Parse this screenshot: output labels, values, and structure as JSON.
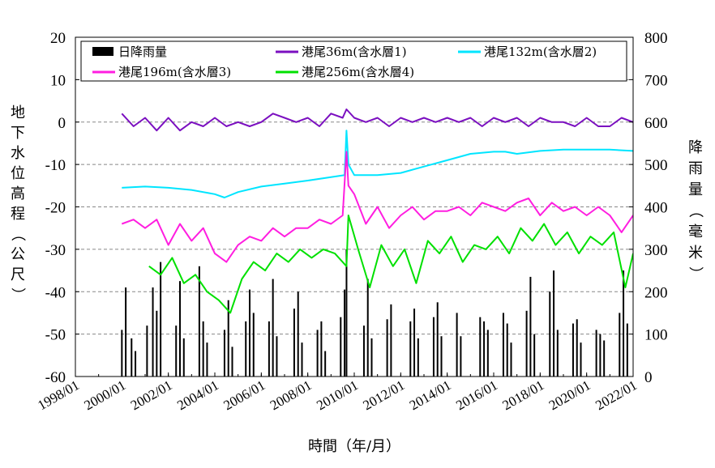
{
  "chart_data": {
    "type": "line",
    "xlabel": "時間（年/月）",
    "ylabel_left": "地下水位高程（公尺）",
    "ylabel_right": "降雨量（毫米）",
    "x_range": [
      "1998/01",
      "2022/01"
    ],
    "x_ticks": [
      "1998/01",
      "2000/01",
      "2002/01",
      "2004/01",
      "2006/01",
      "2008/01",
      "2010/01",
      "2012/01",
      "2014/01",
      "2016/01",
      "2018/01",
      "2020/01",
      "2022/01"
    ],
    "ylim_left": [
      -60,
      20
    ],
    "y_ticks_left": [
      "20",
      "10",
      "0",
      "-10",
      "-20",
      "-30",
      "-40",
      "-50",
      "-60"
    ],
    "ylim_right": [
      0,
      800
    ],
    "y_ticks_right": [
      "800",
      "700",
      "600",
      "500",
      "400",
      "300",
      "200",
      "100",
      "0"
    ],
    "grid": "dashed horizontal at left-axis ticks",
    "legend": {
      "placement": "top",
      "entries": [
        "日降雨量",
        "港尾36m(含水層1)",
        "港尾132m(含水層2)",
        "港尾196m(含水層3)",
        "港尾256m(含水層4)"
      ]
    },
    "series": [
      {
        "name": "港尾36m(含水層1)",
        "color": "#7B0FC0",
        "x": [
          "2000/01",
          "2000/07",
          "2001/01",
          "2001/07",
          "2002/01",
          "2002/07",
          "2003/01",
          "2003/07",
          "2004/01",
          "2004/07",
          "2005/01",
          "2005/07",
          "2006/01",
          "2006/07",
          "2007/01",
          "2007/07",
          "2008/01",
          "2008/07",
          "2009/01",
          "2009/07",
          "2009/09",
          "2010/01",
          "2010/07",
          "2011/01",
          "2011/07",
          "2012/01",
          "2012/07",
          "2013/01",
          "2013/07",
          "2014/01",
          "2014/07",
          "2015/01",
          "2015/07",
          "2016/01",
          "2016/07",
          "2017/01",
          "2017/07",
          "2018/01",
          "2018/07",
          "2019/01",
          "2019/07",
          "2020/01",
          "2020/07",
          "2021/01",
          "2021/07",
          "2022/01"
        ],
        "y": [
          2,
          -1,
          1,
          -2,
          1,
          -2,
          0,
          -1,
          1,
          -1,
          0,
          -1,
          0,
          2,
          1,
          0,
          1,
          -1,
          2,
          1,
          3,
          1,
          0,
          1,
          -1,
          1,
          0,
          1,
          0,
          1,
          0,
          1,
          -1,
          1,
          0,
          1,
          -1,
          1,
          0,
          0,
          -1,
          1,
          -1,
          -1,
          1,
          0
        ]
      },
      {
        "name": "港尾132m(含水層2)",
        "color": "#00E5FF",
        "x": [
          "2000/01",
          "2001/01",
          "2002/01",
          "2003/01",
          "2004/01",
          "2004/06",
          "2005/01",
          "2006/01",
          "2007/01",
          "2008/01",
          "2009/01",
          "2009/08",
          "2009/09",
          "2009/10",
          "2010/01",
          "2011/01",
          "2012/01",
          "2013/01",
          "2014/01",
          "2015/01",
          "2016/01",
          "2016/07",
          "2017/01",
          "2018/01",
          "2019/01",
          "2020/01",
          "2021/01",
          "2022/01"
        ],
        "y": [
          -15.5,
          -15.2,
          -15.5,
          -16,
          -17,
          -17.8,
          -16.5,
          -15.2,
          -14.5,
          -13.8,
          -13,
          -12.5,
          -2,
          -10,
          -12.5,
          -12.5,
          -12,
          -10.5,
          -9,
          -7.5,
          -7,
          -7,
          -7.5,
          -6.8,
          -6.5,
          -6.5,
          -6.5,
          -6.8
        ]
      },
      {
        "name": "港尾196m(含水層3)",
        "color": "#FF1EE0",
        "x": [
          "2000/01",
          "2000/07",
          "2001/01",
          "2001/07",
          "2002/01",
          "2002/07",
          "2003/01",
          "2003/07",
          "2004/01",
          "2004/07",
          "2005/01",
          "2005/07",
          "2006/01",
          "2006/07",
          "2007/01",
          "2007/07",
          "2008/01",
          "2008/07",
          "2009/01",
          "2009/07",
          "2009/09",
          "2009/10",
          "2010/01",
          "2010/07",
          "2011/01",
          "2011/07",
          "2012/01",
          "2012/07",
          "2013/01",
          "2013/07",
          "2014/01",
          "2014/07",
          "2015/01",
          "2015/07",
          "2016/01",
          "2016/07",
          "2017/01",
          "2017/07",
          "2018/01",
          "2018/07",
          "2019/01",
          "2019/07",
          "2020/01",
          "2020/07",
          "2021/01",
          "2021/07",
          "2022/01"
        ],
        "y": [
          -24,
          -23,
          -25,
          -23,
          -29,
          -24,
          -28,
          -25,
          -31,
          -33,
          -29,
          -27,
          -28,
          -25,
          -27,
          -25,
          -25,
          -23,
          -24,
          -22,
          -7,
          -15,
          -17,
          -24,
          -20,
          -25,
          -22,
          -20,
          -23,
          -21,
          -21,
          -20,
          -22,
          -19,
          -20,
          -21,
          -19,
          -18,
          -22,
          -19,
          -21,
          -20,
          -22,
          -20,
          -22,
          -26,
          -22
        ]
      },
      {
        "name": "港尾256m(含水層4)",
        "color": "#00E000",
        "x": [
          "2001/03",
          "2001/09",
          "2002/03",
          "2002/09",
          "2003/03",
          "2003/09",
          "2004/03",
          "2004/09",
          "2005/03",
          "2005/09",
          "2006/03",
          "2006/09",
          "2007/03",
          "2007/09",
          "2008/03",
          "2008/09",
          "2009/03",
          "2009/09",
          "2009/10",
          "2010/03",
          "2010/09",
          "2011/03",
          "2011/09",
          "2012/03",
          "2012/09",
          "2013/03",
          "2013/09",
          "2014/03",
          "2014/09",
          "2015/03",
          "2015/09",
          "2016/03",
          "2016/09",
          "2017/03",
          "2017/09",
          "2018/03",
          "2018/09",
          "2019/03",
          "2019/09",
          "2020/03",
          "2020/09",
          "2021/03",
          "2021/09",
          "2022/01"
        ],
        "y": [
          -34,
          -36,
          -32,
          -38,
          -36,
          -40,
          -42,
          -45,
          -37,
          -33,
          -35,
          -31,
          -33,
          -30,
          -32,
          -30,
          -31,
          -34,
          -22,
          -30,
          -39,
          -29,
          -34,
          -30,
          -38,
          -28,
          -31,
          -27,
          -33,
          -29,
          -30,
          -27,
          -31,
          -25,
          -28,
          -24,
          -29,
          -26,
          -31,
          -27,
          -29,
          -26,
          -39,
          -31
        ]
      },
      {
        "name": "日降雨量",
        "type": "bar",
        "color": "#000000",
        "axis": "right",
        "x": [
          "2000/01",
          "2000/03",
          "2000/06",
          "2000/08",
          "2001/02",
          "2001/05",
          "2001/07",
          "2001/09",
          "2002/05",
          "2002/07",
          "2002/09",
          "2003/05",
          "2003/07",
          "2003/09",
          "2004/06",
          "2004/08",
          "2004/10",
          "2005/05",
          "2005/07",
          "2005/09",
          "2006/05",
          "2006/07",
          "2006/09",
          "2007/06",
          "2007/08",
          "2007/10",
          "2008/06",
          "2008/08",
          "2008/10",
          "2009/06",
          "2009/08",
          "2009/09",
          "2010/06",
          "2010/08",
          "2010/10",
          "2011/06",
          "2011/08",
          "2012/06",
          "2012/08",
          "2012/10",
          "2013/06",
          "2013/08",
          "2013/10",
          "2014/06",
          "2014/08",
          "2015/06",
          "2015/08",
          "2015/10",
          "2016/06",
          "2016/08",
          "2016/10",
          "2017/06",
          "2017/08",
          "2017/10",
          "2018/06",
          "2018/08",
          "2018/10",
          "2019/06",
          "2019/08",
          "2019/10",
          "2020/06",
          "2020/08",
          "2020/10",
          "2021/06",
          "2021/08",
          "2021/10"
        ],
        "values": [
          110,
          210,
          90,
          60,
          120,
          210,
          155,
          270,
          120,
          225,
          90,
          260,
          130,
          80,
          110,
          180,
          70,
          130,
          205,
          150,
          130,
          230,
          95,
          160,
          200,
          80,
          110,
          130,
          60,
          140,
          205,
          300,
          120,
          230,
          90,
          135,
          170,
          130,
          160,
          90,
          140,
          175,
          95,
          150,
          95,
          140,
          130,
          110,
          150,
          125,
          80,
          155,
          235,
          100,
          200,
          250,
          110,
          125,
          135,
          80,
          110,
          100,
          85,
          150,
          250,
          125
        ]
      }
    ]
  }
}
